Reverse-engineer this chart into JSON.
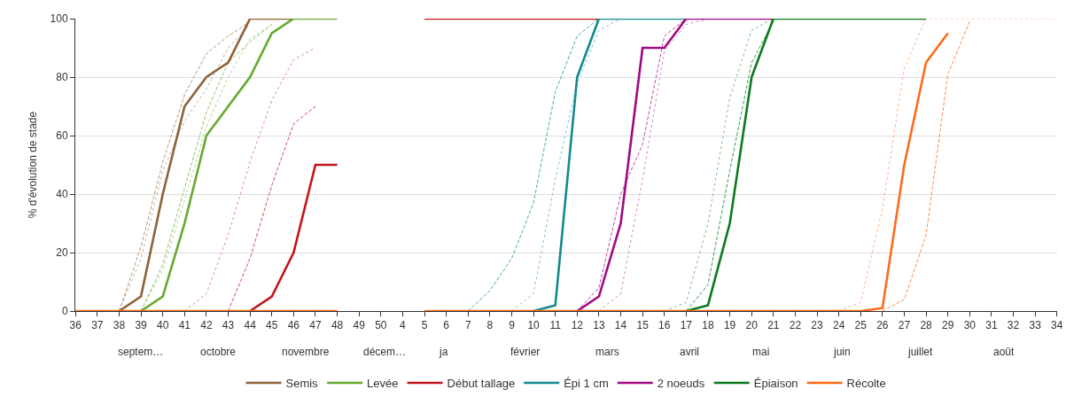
{
  "chart_data": {
    "type": "line",
    "ylabel": "% d'évolution de stade",
    "categories": [
      "36",
      "37",
      "38",
      "39",
      "40",
      "41",
      "42",
      "43",
      "44",
      "45",
      "46",
      "47",
      "48",
      "49",
      "50",
      "4",
      "5",
      "6",
      "7",
      "8",
      "9",
      "10",
      "11",
      "12",
      "13",
      "14",
      "15",
      "16",
      "17",
      "18",
      "19",
      "20",
      "21",
      "22",
      "23",
      "24",
      "25",
      "26",
      "27",
      "28",
      "29",
      "30",
      "31",
      "32",
      "33",
      "34"
    ],
    "ylim": [
      0,
      100
    ],
    "yticks": [
      0,
      20,
      40,
      60,
      80,
      100
    ],
    "grid": "y",
    "legend": "bottom",
    "marker": "none",
    "annotations": [
      "septem…",
      "octobre",
      "novembre",
      "décem…",
      "ja",
      "février",
      "mars",
      "avril",
      "mai",
      "juin",
      "juillet",
      "août"
    ],
    "series": [
      {
        "color": "#b8987a",
        "line_style": "dashed",
        "values": [
          null,
          null,
          0,
          22,
          51,
          74,
          88,
          94,
          99,
          null,
          null,
          null,
          null,
          null,
          null,
          null,
          null,
          null,
          null,
          null,
          null,
          null,
          null,
          null,
          null,
          null,
          null,
          null,
          null,
          null,
          null,
          null,
          null,
          null,
          null,
          null,
          null,
          null,
          null,
          null,
          null,
          null,
          null,
          null,
          null,
          null
        ]
      },
      {
        "color": "#c4aa90",
        "line_style": "dotted",
        "values": [
          null,
          null,
          0,
          18,
          48,
          65,
          76,
          90,
          98,
          null,
          null,
          null,
          null,
          null,
          null,
          null,
          null,
          null,
          null,
          null,
          null,
          null,
          null,
          null,
          null,
          null,
          null,
          null,
          null,
          null,
          null,
          null,
          null,
          null,
          null,
          null,
          null,
          null,
          null,
          null,
          null,
          null,
          null,
          null,
          null,
          null
        ]
      },
      {
        "color": "#8cc466",
        "line_style": "dashed",
        "values": [
          null,
          null,
          null,
          0,
          16,
          42,
          68,
          85,
          92,
          98,
          null,
          null,
          null,
          null,
          null,
          null,
          null,
          null,
          null,
          null,
          null,
          null,
          null,
          null,
          null,
          null,
          null,
          null,
          null,
          null,
          null,
          null,
          null,
          null,
          null,
          null,
          null,
          null,
          null,
          null,
          null,
          null,
          null,
          null,
          null,
          null
        ]
      },
      {
        "color": "#a8d488",
        "line_style": "dotted",
        "values": [
          null,
          null,
          null,
          0,
          14,
          38,
          63,
          80,
          93,
          98,
          null,
          null,
          null,
          null,
          null,
          null,
          null,
          null,
          null,
          null,
          null,
          null,
          null,
          null,
          null,
          null,
          null,
          null,
          null,
          null,
          null,
          null,
          null,
          null,
          null,
          null,
          null,
          null,
          null,
          null,
          null,
          null,
          null,
          null,
          null,
          null
        ]
      },
      {
        "color": "#e08a8a",
        "line_style": "dotted",
        "values": [
          null,
          null,
          null,
          null,
          null,
          0,
          6,
          26,
          51,
          72,
          86,
          90,
          null,
          null,
          null,
          null,
          null,
          null,
          null,
          null,
          null,
          null,
          null,
          null,
          null,
          null,
          null,
          null,
          null,
          null,
          null,
          null,
          null,
          null,
          null,
          null,
          null,
          null,
          null,
          null,
          null,
          null,
          null,
          null,
          null,
          null
        ]
      },
      {
        "color": "#d05050",
        "line_style": "dashed",
        "values": [
          null,
          null,
          null,
          null,
          null,
          null,
          null,
          0,
          18,
          43,
          64,
          70,
          null,
          null,
          null,
          null,
          null,
          null,
          null,
          null,
          null,
          null,
          null,
          null,
          null,
          null,
          null,
          null,
          null,
          null,
          null,
          null,
          null,
          null,
          null,
          null,
          null,
          null,
          null,
          null,
          null,
          null,
          null,
          null,
          null,
          null
        ]
      },
      {
        "color": "#4aa8aa",
        "line_style": "dashed",
        "values": [
          null,
          null,
          null,
          null,
          null,
          null,
          null,
          null,
          null,
          null,
          null,
          null,
          null,
          null,
          null,
          null,
          null,
          null,
          0,
          7,
          18,
          37,
          75,
          94,
          100,
          null,
          null,
          null,
          null,
          null,
          null,
          null,
          null,
          null,
          null,
          null,
          null,
          null,
          null,
          null,
          null,
          null,
          null,
          null,
          null,
          null
        ]
      },
      {
        "color": "#80c4c6",
        "line_style": "dotted",
        "values": [
          null,
          null,
          null,
          null,
          null,
          null,
          null,
          null,
          null,
          null,
          null,
          null,
          null,
          null,
          null,
          null,
          null,
          null,
          null,
          null,
          0,
          6,
          45,
          78,
          96,
          100,
          null,
          null,
          null,
          null,
          null,
          null,
          null,
          null,
          null,
          null,
          null,
          null,
          null,
          null,
          null,
          null,
          null,
          null,
          null,
          null
        ]
      },
      {
        "color": "#c04aa4",
        "line_style": "dashed",
        "values": [
          null,
          null,
          null,
          null,
          null,
          null,
          null,
          null,
          null,
          null,
          null,
          null,
          null,
          null,
          null,
          null,
          null,
          null,
          null,
          null,
          null,
          null,
          null,
          0,
          8,
          40,
          57,
          94,
          100,
          null,
          null,
          null,
          null,
          null,
          null,
          null,
          null,
          null,
          null,
          null,
          null,
          null,
          null,
          null,
          null,
          null
        ]
      },
      {
        "color": "#d888c8",
        "line_style": "dotted",
        "values": [
          null,
          null,
          null,
          null,
          null,
          null,
          null,
          null,
          null,
          null,
          null,
          null,
          null,
          null,
          null,
          null,
          null,
          null,
          null,
          null,
          null,
          null,
          null,
          null,
          0,
          6,
          45,
          89,
          98,
          100,
          null,
          null,
          null,
          null,
          null,
          null,
          null,
          null,
          null,
          null,
          null,
          null,
          null,
          null,
          null,
          null
        ]
      },
      {
        "color": "#80c08c",
        "line_style": "dotted",
        "values": [
          null,
          null,
          null,
          null,
          null,
          null,
          null,
          null,
          null,
          null,
          null,
          null,
          null,
          null,
          null,
          null,
          null,
          null,
          null,
          null,
          null,
          null,
          null,
          null,
          null,
          null,
          null,
          0,
          3,
          30,
          73,
          96,
          100,
          null,
          null,
          null,
          null,
          null,
          null,
          null,
          null,
          null,
          null,
          null,
          null,
          null
        ]
      },
      {
        "color": "#3c9a4c",
        "line_style": "dashed",
        "values": [
          null,
          null,
          null,
          null,
          null,
          null,
          null,
          null,
          null,
          null,
          null,
          null,
          null,
          null,
          null,
          null,
          null,
          null,
          null,
          null,
          null,
          null,
          null,
          null,
          null,
          null,
          null,
          null,
          0,
          9,
          48,
          85,
          99,
          null,
          null,
          null,
          null,
          null,
          null,
          null,
          null,
          null,
          null,
          null,
          null,
          null
        ]
      },
      {
        "color": "#ffb088",
        "line_style": "dotted",
        "values": [
          null,
          null,
          null,
          null,
          null,
          null,
          null,
          null,
          null,
          null,
          null,
          null,
          null,
          null,
          null,
          null,
          null,
          null,
          null,
          null,
          null,
          null,
          null,
          null,
          null,
          null,
          null,
          null,
          null,
          null,
          null,
          null,
          null,
          null,
          null,
          0,
          3,
          35,
          83,
          100,
          100,
          100,
          100,
          100,
          100,
          100
        ]
      },
      {
        "color": "#ff8c50",
        "line_style": "dashed",
        "values": [
          null,
          null,
          null,
          null,
          null,
          null,
          null,
          null,
          null,
          null,
          null,
          null,
          null,
          null,
          null,
          null,
          null,
          null,
          null,
          null,
          null,
          null,
          null,
          null,
          null,
          null,
          null,
          null,
          null,
          null,
          null,
          null,
          null,
          null,
          null,
          null,
          null,
          0,
          4,
          26,
          81,
          99,
          null,
          null,
          null,
          null
        ]
      },
      {
        "name": "Semis",
        "color": "#8c6239",
        "line_style": "solid",
        "values": [
          null,
          null,
          0,
          5,
          40,
          70,
          80,
          85,
          100,
          100,
          100,
          null,
          null,
          null,
          null,
          null,
          null,
          null,
          null,
          null,
          null,
          null,
          null,
          null,
          null,
          null,
          null,
          null,
          null,
          null,
          null,
          null,
          null,
          null,
          null,
          null,
          null,
          null,
          null,
          null,
          null,
          null,
          null,
          null,
          null,
          null
        ]
      },
      {
        "name": "Levée",
        "color": "#66a82c",
        "line_style": "solid",
        "values": [
          null,
          null,
          null,
          0,
          5,
          30,
          60,
          70,
          80,
          95,
          100,
          100,
          100,
          null,
          null,
          null,
          null,
          null,
          null,
          null,
          null,
          null,
          null,
          null,
          null,
          null,
          null,
          null,
          null,
          null,
          null,
          null,
          null,
          null,
          null,
          null,
          null,
          null,
          null,
          null,
          null,
          null,
          null,
          null,
          null,
          null
        ]
      },
      {
        "name": "Début tallage",
        "color": "#c0161c",
        "line_style": "solid",
        "values": [
          null,
          null,
          null,
          null,
          null,
          null,
          null,
          null,
          0,
          5,
          20,
          50,
          50,
          null,
          null,
          null,
          100,
          100,
          100,
          100,
          100,
          100,
          100,
          100,
          100,
          null,
          null,
          null,
          null,
          null,
          null,
          null,
          null,
          null,
          null,
          null,
          null,
          null,
          null,
          null,
          null,
          null,
          null,
          null,
          null,
          null
        ]
      },
      {
        "name": "Épi 1 cm",
        "color": "#138a8e",
        "line_style": "solid",
        "values": [
          null,
          null,
          null,
          null,
          null,
          null,
          null,
          null,
          null,
          null,
          null,
          null,
          null,
          null,
          null,
          null,
          null,
          null,
          null,
          null,
          null,
          0,
          2,
          80,
          100,
          100,
          100,
          100,
          100,
          null,
          null,
          null,
          null,
          null,
          null,
          null,
          null,
          null,
          null,
          null,
          null,
          null,
          null,
          null,
          null,
          null
        ]
      },
      {
        "name": "2 noeuds",
        "color": "#a00a82",
        "line_style": "solid",
        "values": [
          null,
          null,
          null,
          null,
          null,
          null,
          null,
          null,
          null,
          null,
          null,
          null,
          null,
          null,
          null,
          null,
          null,
          null,
          null,
          null,
          null,
          null,
          null,
          0,
          5,
          30,
          90,
          90,
          100,
          100,
          100,
          100,
          100,
          null,
          null,
          null,
          null,
          null,
          null,
          null,
          null,
          null,
          null,
          null,
          null,
          null
        ]
      },
      {
        "name": "Épiaison",
        "color": "#0a7a1e",
        "line_style": "solid",
        "values": [
          null,
          null,
          null,
          null,
          null,
          null,
          null,
          null,
          null,
          null,
          null,
          null,
          null,
          null,
          null,
          null,
          null,
          null,
          null,
          null,
          null,
          null,
          null,
          null,
          null,
          null,
          null,
          null,
          0,
          2,
          30,
          80,
          100,
          100,
          100,
          100,
          100,
          100,
          100,
          100,
          null,
          null,
          null,
          null,
          null,
          null
        ]
      },
      {
        "name": "Récolte",
        "color": "#ff6a1a",
        "line_style": "solid",
        "values": [
          0,
          0,
          0,
          0,
          0,
          0,
          0,
          0,
          0,
          0,
          0,
          0,
          0,
          null,
          null,
          null,
          0,
          0,
          0,
          0,
          0,
          0,
          0,
          0,
          0,
          0,
          0,
          0,
          0,
          0,
          0,
          0,
          0,
          0,
          0,
          0,
          0,
          1,
          50,
          85,
          95,
          null,
          null,
          null,
          null,
          null
        ]
      }
    ]
  }
}
